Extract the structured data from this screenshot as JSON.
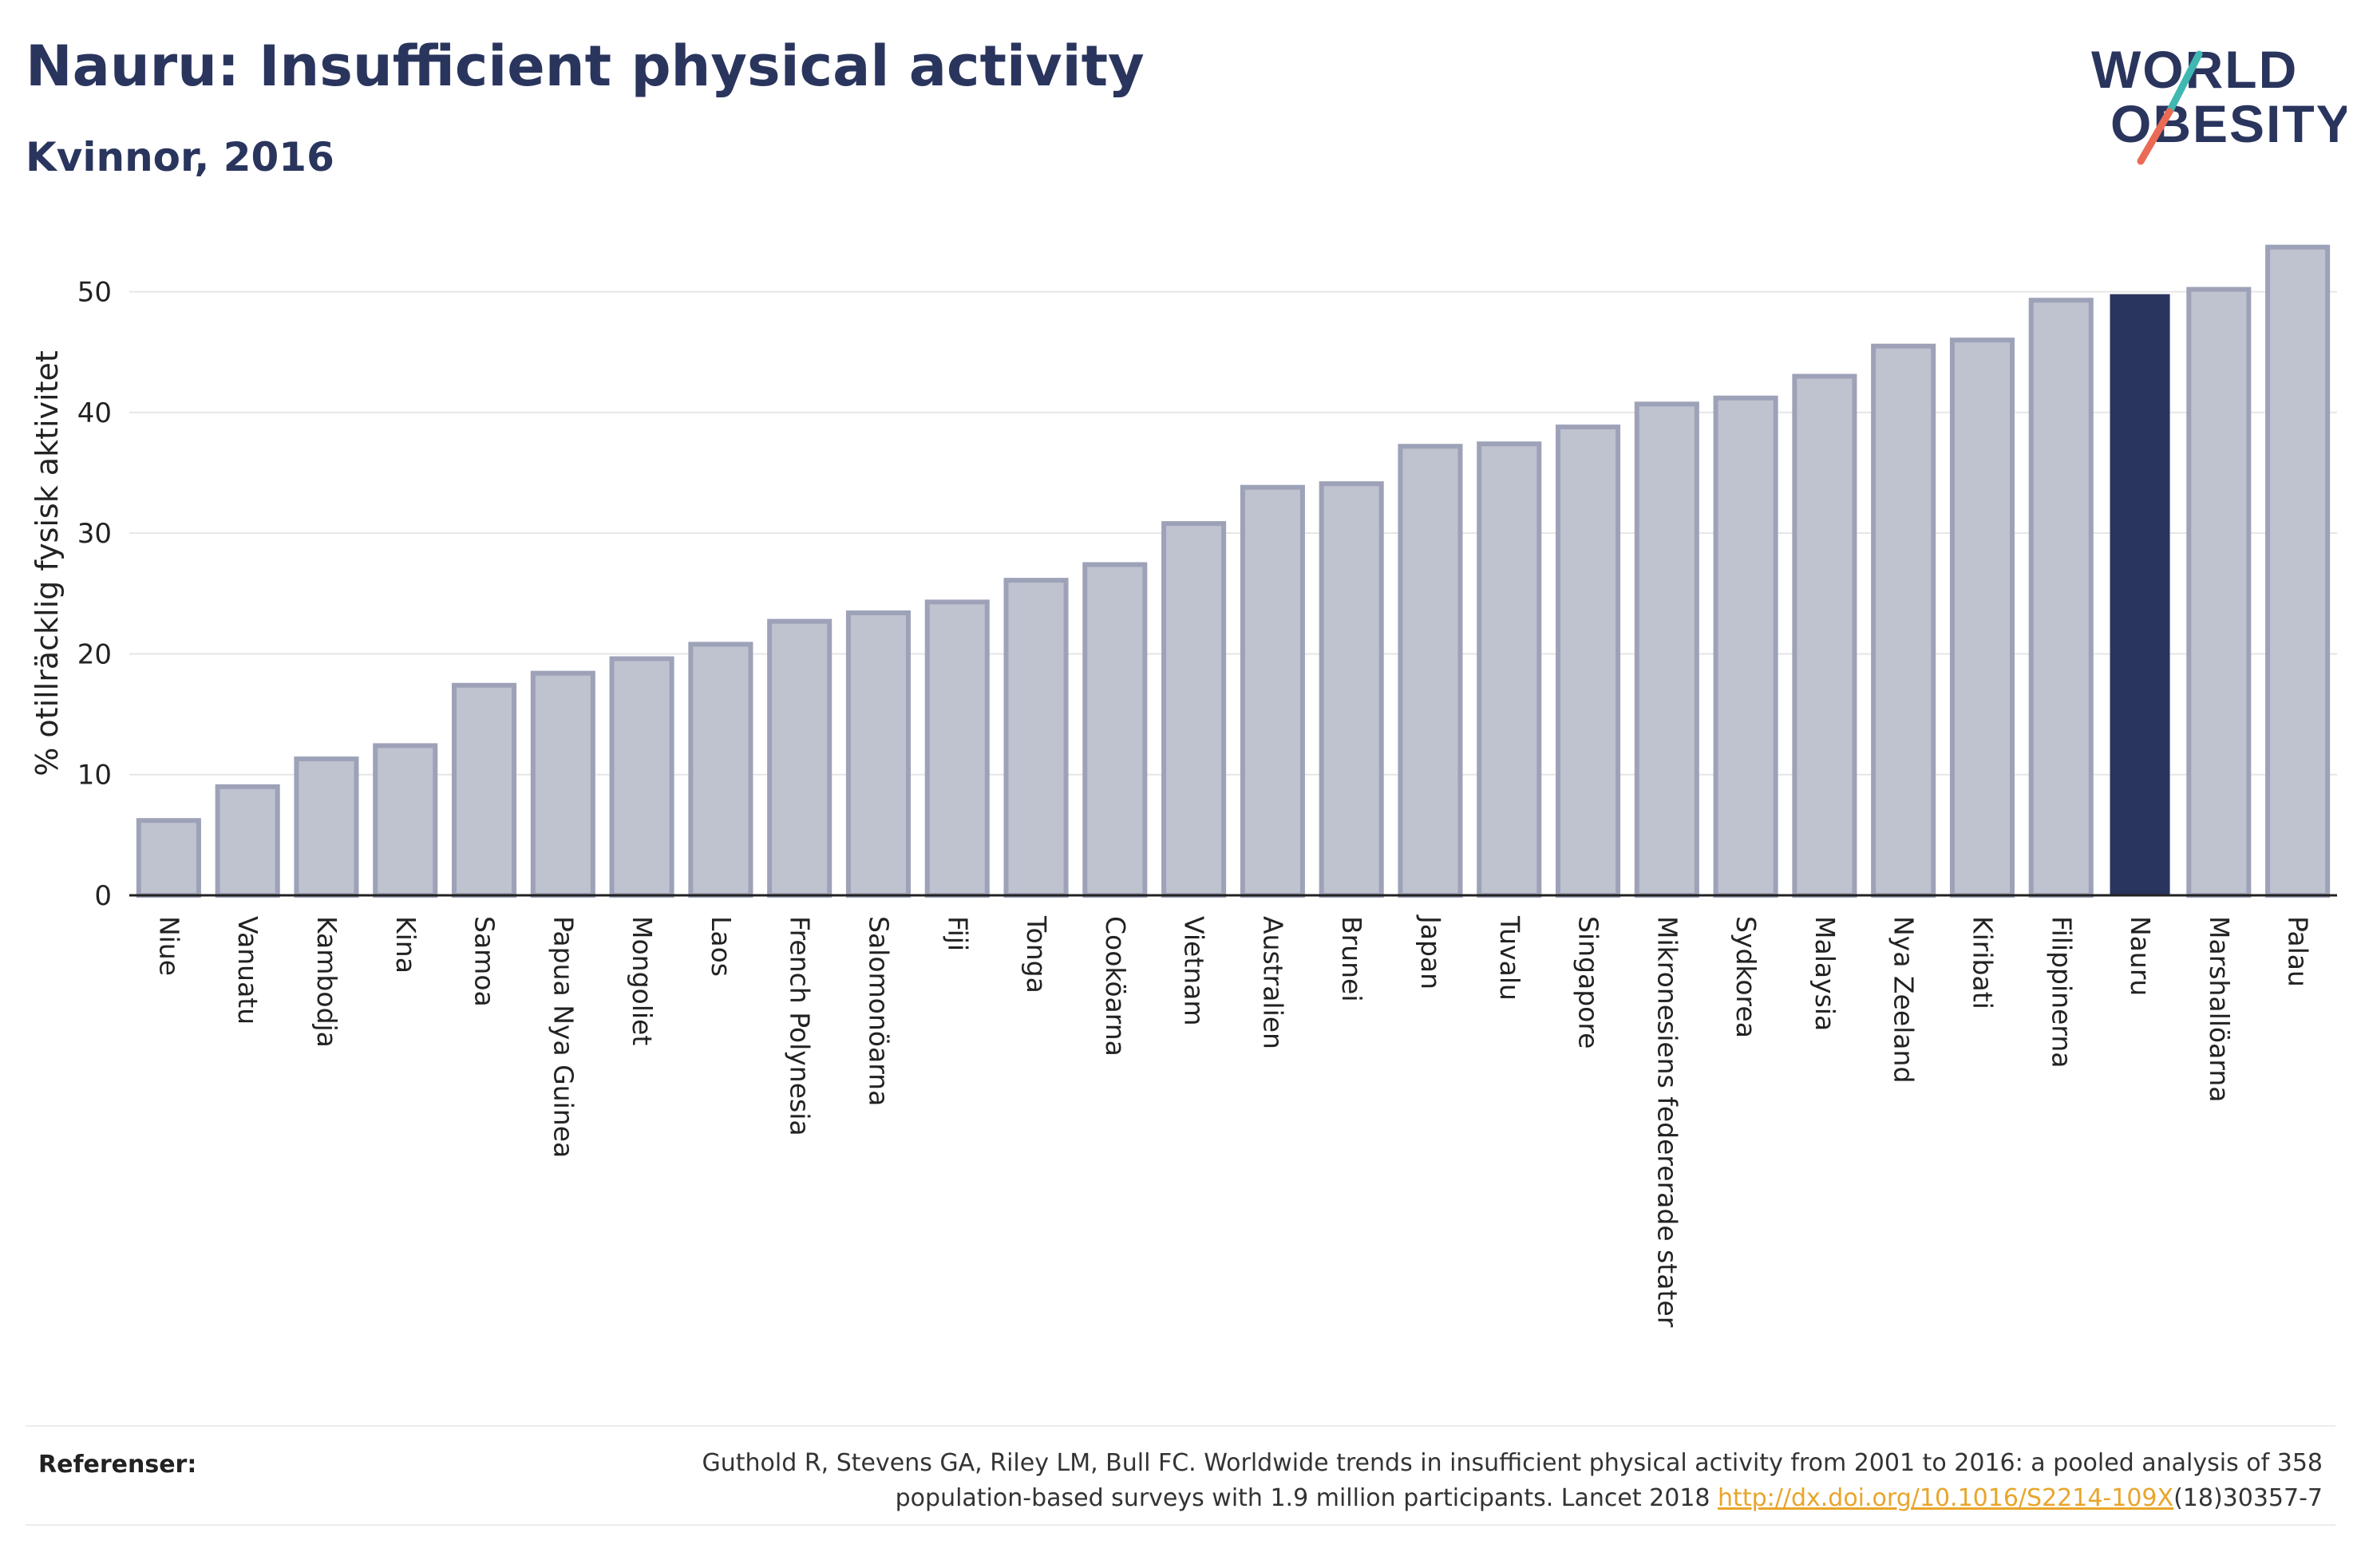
{
  "header": {
    "title": "Nauru: Insufficient physical activity",
    "subtitle": "Kvinnor, 2016"
  },
  "logo": {
    "line1": "WORLD",
    "line2": "OBESITY",
    "colors": {
      "text": "#2a355e",
      "slash_teal": "#3fb8b1",
      "slash_coral": "#ea6a55"
    }
  },
  "colors": {
    "bar_fill": "#bfc2cf",
    "bar_stroke": "#9da2b8",
    "highlight": "#2a355e",
    "grid": "#e6e6e6",
    "axis": "#222222"
  },
  "chart_data": {
    "type": "bar",
    "ylabel": "% otillräcklig fysisk aktivitet",
    "ylim": [
      0,
      55
    ],
    "yticks": [
      0,
      10,
      20,
      30,
      40,
      50
    ],
    "grid": true,
    "highlight": "Nauru",
    "categories": [
      "Niue",
      "Vanuatu",
      "Kambodja",
      "Kina",
      "Samoa",
      "Papua Nya Guinea",
      "Mongoliet",
      "Laos",
      "French Polynesia",
      "Salomonöarna",
      "Fiji",
      "Tonga",
      "Cooköarna",
      "Vietnam",
      "Australien",
      "Brunei",
      "Japan",
      "Tuvalu",
      "Singapore",
      "Mikronesiens federerade stater",
      "Sydkorea",
      "Malaysia",
      "Nya Zeeland",
      "Kiribati",
      "Filippinerna",
      "Nauru",
      "Marshallöarna",
      "Palau"
    ],
    "values": [
      6.2,
      9.0,
      11.3,
      12.4,
      17.4,
      18.4,
      19.6,
      20.8,
      22.7,
      23.4,
      24.3,
      26.1,
      27.4,
      30.8,
      33.8,
      34.1,
      37.2,
      37.4,
      38.8,
      40.7,
      41.2,
      43.0,
      45.5,
      46.0,
      49.3,
      49.8,
      50.2,
      53.7
    ]
  },
  "references": {
    "label": "Referenser:",
    "text_line1": "Guthold R, Stevens GA, Riley LM, Bull FC. Worldwide trends in insufficient physical activity from 2001 to 2016: a pooled analysis of 358",
    "text_line2": "population-based surveys with 1.9 million participants. Lancet 2018",
    "link": "http://dx.doi.org/10.1016/S2214-109X",
    "link_suffix": "(18)30357-7"
  }
}
